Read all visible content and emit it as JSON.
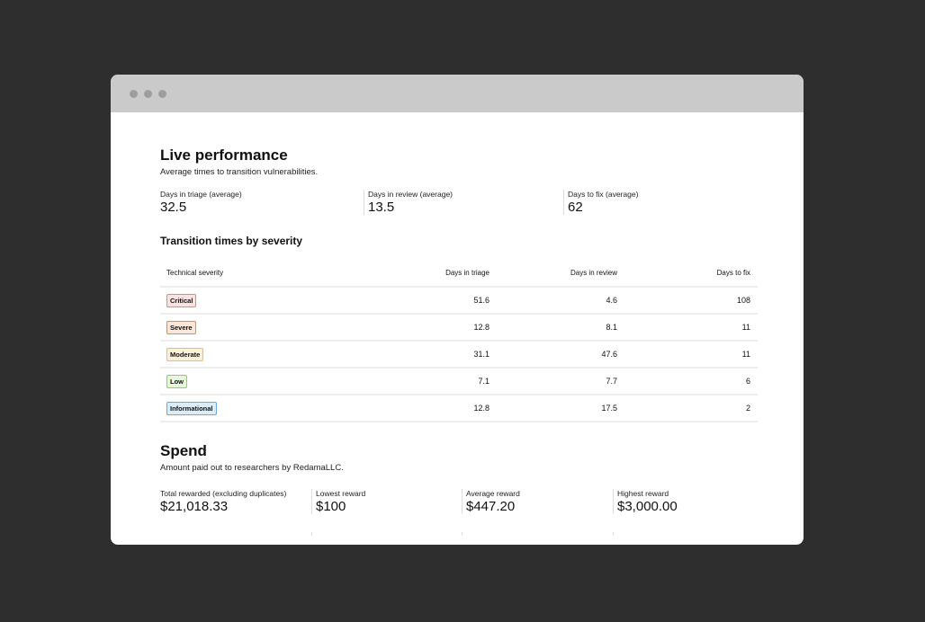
{
  "live": {
    "title": "Live performance",
    "subtitle": "Average times to transition vulnerabilities.",
    "stats": [
      {
        "label": "Days in triage (average)",
        "value": "32.5"
      },
      {
        "label": "Days in review (average)",
        "value": "13.5"
      },
      {
        "label": "Days to fix (average)",
        "value": "62"
      }
    ]
  },
  "severity": {
    "title": "Transition times by severity",
    "columns": [
      "Technical severity",
      "Days in triage",
      "Days in review",
      "Days to fix"
    ],
    "rows": [
      {
        "severity": "Critical",
        "bg": "#fde2e4",
        "border": "#e8848c",
        "triage": "51.6",
        "review": "4.6",
        "fix": "108"
      },
      {
        "severity": "Severe",
        "bg": "#fee6d8",
        "border": "#f08a3c",
        "triage": "12.8",
        "review": "8.1",
        "fix": "11"
      },
      {
        "severity": "Moderate",
        "bg": "#fff0dc",
        "border": "#f5b866",
        "triage": "31.1",
        "review": "47.6",
        "fix": "11"
      },
      {
        "severity": "Low",
        "bg": "#e8f6df",
        "border": "#8fcc6a",
        "triage": "7.1",
        "review": "7.7",
        "fix": "6"
      },
      {
        "severity": "Informational",
        "bg": "#dcedfa",
        "border": "#6ba9d8",
        "triage": "12.8",
        "review": "17.5",
        "fix": "2"
      }
    ]
  },
  "spend": {
    "title": "Spend",
    "subtitle": "Amount paid out to researchers by RedamaLLC.",
    "stats": [
      {
        "label": "Total rewarded (excluding duplicates)",
        "value": "$21,018.33"
      },
      {
        "label": "Lowest reward",
        "value": "$100"
      },
      {
        "label": "Average reward",
        "value": "$447.20"
      },
      {
        "label": "Highest reward",
        "value": "$3,000.00"
      }
    ]
  }
}
